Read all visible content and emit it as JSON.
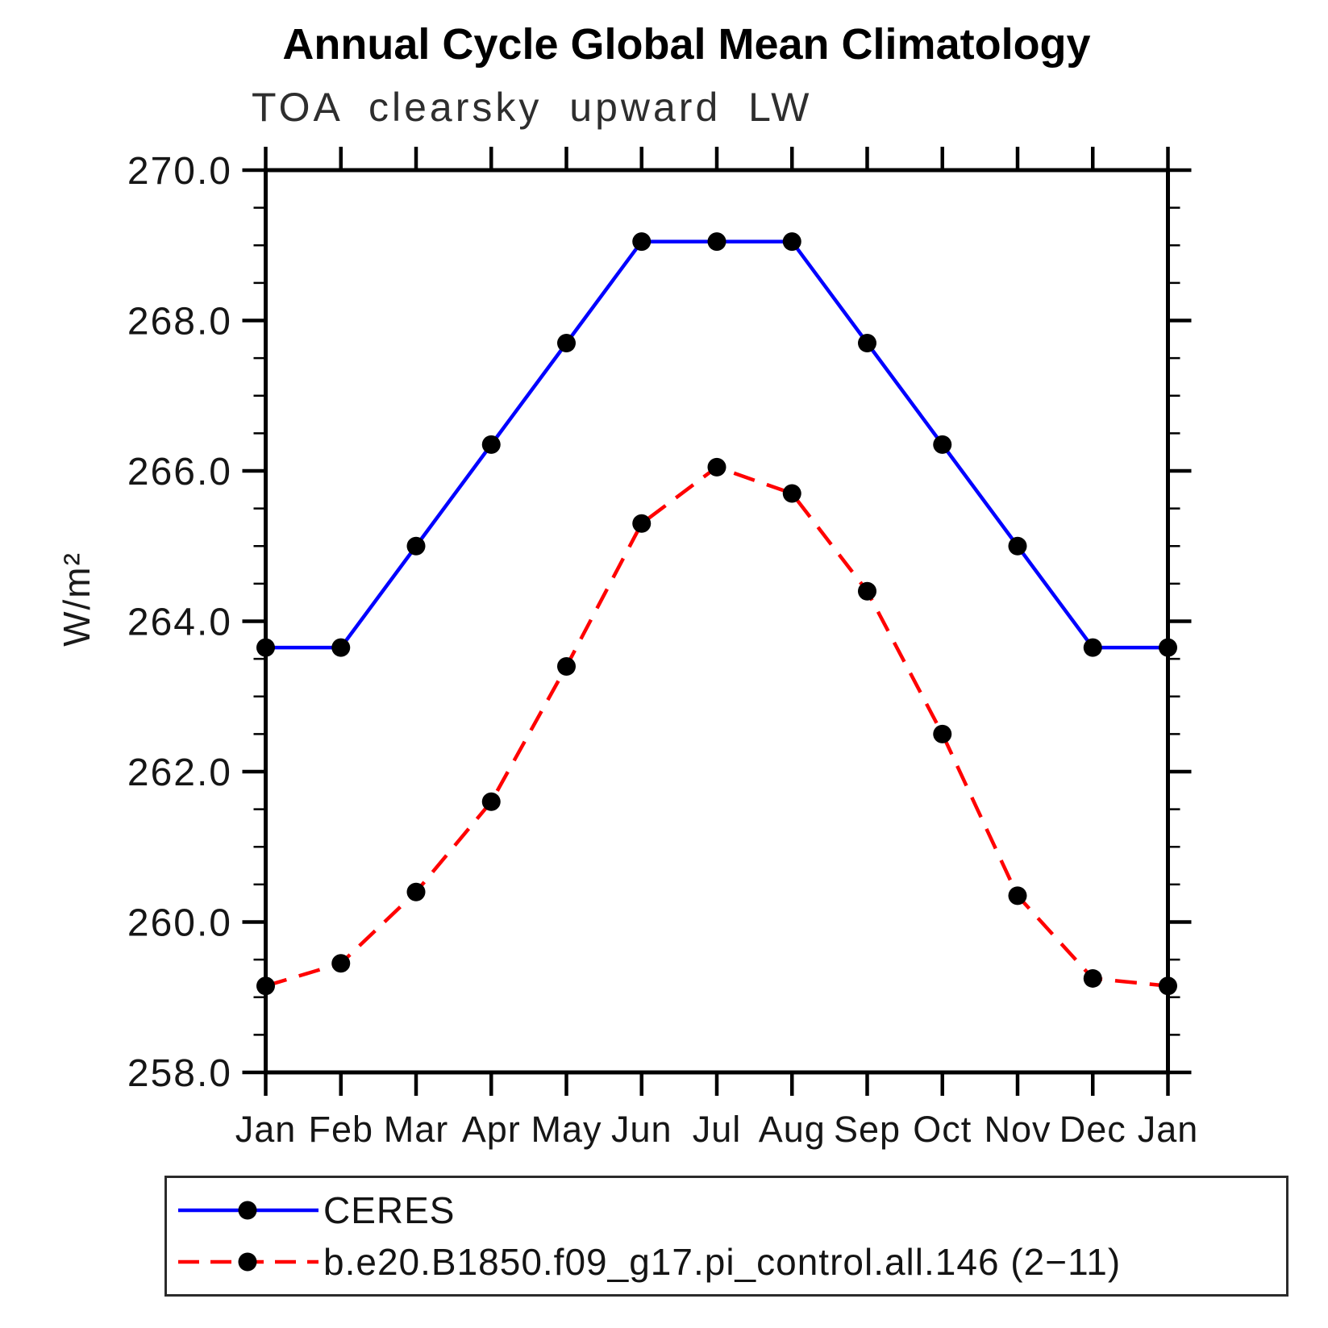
{
  "header": {
    "title": "Annual Cycle Global Mean Climatology",
    "subtitle": "TOA clearsky upward LW"
  },
  "chart_data": {
    "type": "line",
    "title": "Annual Cycle Global Mean Climatology",
    "subtitle": "TOA clearsky upward LW",
    "xlabel": "",
    "ylabel": "W/m²",
    "x_tick_labels": [
      "Jan",
      "Feb",
      "Mar",
      "Apr",
      "May",
      "Jun",
      "Jul",
      "Aug",
      "Sep",
      "Oct",
      "Nov",
      "Dec",
      "Jan"
    ],
    "y_tick_labels": [
      "270.0",
      "268.0",
      "266.0",
      "264.0",
      "262.0",
      "260.0",
      "258.0"
    ],
    "y_tick_values": [
      270.0,
      268.0,
      266.0,
      264.0,
      262.0,
      260.0,
      258.0
    ],
    "ylim": [
      258.0,
      270.0
    ],
    "y_minor_step": 0.5,
    "grid": "off",
    "legend_position": "bottom-left-box",
    "series": [
      {
        "name": "CERES",
        "color": "#0000ff",
        "line_style": "solid",
        "marker": "circle",
        "marker_color": "#000000",
        "values": [
          263.65,
          263.65,
          265.0,
          266.35,
          267.7,
          269.05,
          269.05,
          269.05,
          267.7,
          266.35,
          265.0,
          263.65,
          263.65
        ]
      },
      {
        "name": "b.e20.B1850.f09_g17.pi_control.all.146 (2−11)",
        "color": "#ff0000",
        "line_style": "dashed",
        "marker": "circle",
        "marker_color": "#000000",
        "values": [
          259.15,
          259.45,
          260.4,
          261.6,
          263.4,
          265.3,
          266.05,
          265.7,
          264.4,
          262.5,
          260.35,
          259.25,
          259.15
        ]
      }
    ]
  }
}
